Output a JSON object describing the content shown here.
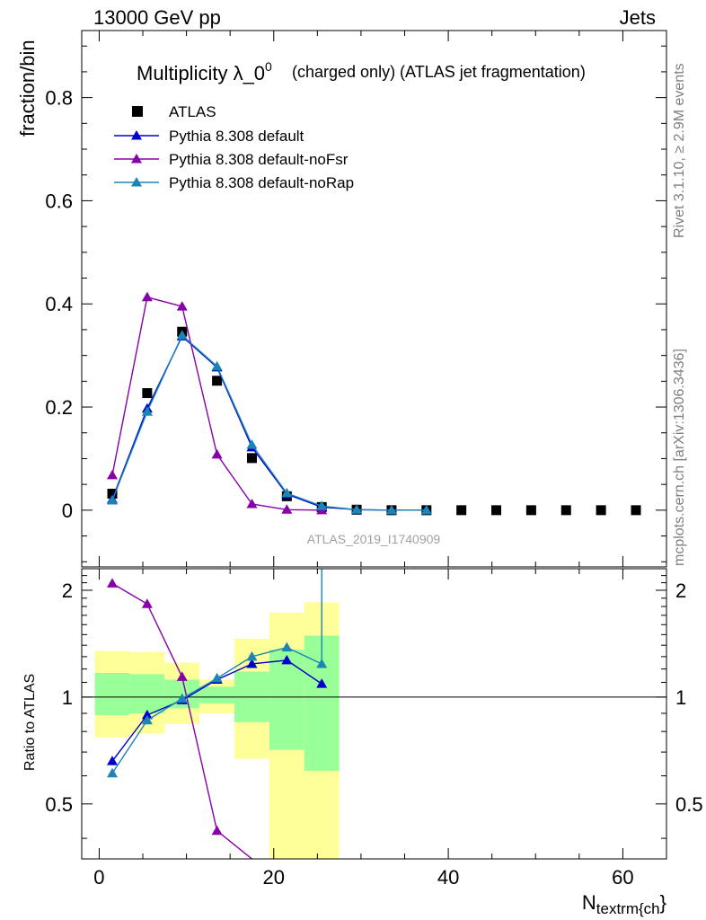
{
  "header": {
    "left": "13000 GeV pp",
    "right": "Jets"
  },
  "side_labels": {
    "rivet": "Rivet 3.1.10, ≥ 2.9M events",
    "mcplots": "mcplots.cern.ch [arXiv:1306.3436]"
  },
  "chart_data": [
    {
      "type": "scatter",
      "title": "Multiplicity λ_0",
      "title_superscript": "0",
      "subtitle": "(charged only) (ATLAS jet fragmentation)",
      "xlabel": "N",
      "xlabel_subscript": "textrm{ch",
      "xlabel_suffix": "}",
      "ylabel": "fraction/bin",
      "watermark": "ATLAS_2019_I1740909",
      "xlim": [
        -2,
        65
      ],
      "ylim": [
        -0.11,
        0.93
      ],
      "x_ticks": [
        0,
        20,
        40,
        60
      ],
      "y_ticks": [
        0,
        0.2,
        0.4,
        0.6,
        0.8
      ],
      "y_tick_labels": [
        "0",
        "0.2",
        "0.4",
        "0.6",
        "0.8"
      ],
      "legend_position": "top-left",
      "series": [
        {
          "name": "ATLAS",
          "marker": "square",
          "color": "#000000",
          "x": [
            1.5,
            5.5,
            9.5,
            13.5,
            17.5,
            21.5,
            25.5,
            29.5,
            33.5,
            37.5,
            41.5,
            45.5,
            49.5,
            53.5,
            57.5,
            61.5
          ],
          "y": [
            0.032,
            0.227,
            0.346,
            0.251,
            0.101,
            0.027,
            0.006,
            0.001,
            0.0,
            0.0,
            0.0,
            0.0,
            0.0,
            0.0,
            0.0,
            0.0
          ]
        },
        {
          "name": "Pythia 8.308 default",
          "marker": "triangle",
          "color": "#0000cc",
          "x": [
            1.5,
            5.5,
            9.5,
            13.5,
            17.5,
            21.5,
            25.5,
            29.5,
            33.5,
            37.5
          ],
          "y": [
            0.021,
            0.197,
            0.337,
            0.277,
            0.122,
            0.031,
            0.006,
            0.001,
            0.0,
            0.0
          ]
        },
        {
          "name": "Pythia 8.308 default-noFsr",
          "marker": "triangle",
          "color": "#8800aa",
          "x": [
            1.5,
            5.5,
            9.5,
            13.5,
            17.5,
            21.5,
            25.5
          ],
          "y": [
            0.068,
            0.413,
            0.395,
            0.108,
            0.012,
            0.001,
            0.0
          ]
        },
        {
          "name": "Pythia 8.308 default-noRap",
          "marker": "triangle",
          "color": "#1b85b8",
          "x": [
            1.5,
            5.5,
            9.5,
            13.5,
            17.5,
            21.5,
            25.5,
            29.5,
            33.5,
            37.5
          ],
          "y": [
            0.019,
            0.191,
            0.339,
            0.279,
            0.127,
            0.033,
            0.008,
            0.001,
            0.0,
            0.0
          ]
        }
      ]
    },
    {
      "type": "line",
      "ylabel": "Ratio to ATLAS",
      "xlim": [
        -2,
        65
      ],
      "ylim": [
        0.35,
        2.3
      ],
      "log_y": true,
      "y_ticks": [
        0.5,
        1,
        2
      ],
      "y_tick_labels": [
        "0.5",
        "1",
        "2"
      ],
      "x_ticks": [
        0,
        20,
        40,
        60
      ],
      "x_tick_labels": [
        "0",
        "20",
        "40",
        "60"
      ],
      "reference_line": 1,
      "uncertainty_bands": [
        {
          "x_low": -0.5,
          "x_high": 3.5,
          "inner": [
            0.89,
            1.17
          ],
          "outer": [
            0.77,
            1.35
          ]
        },
        {
          "x_low": 3.5,
          "x_high": 7.5,
          "inner": [
            0.9,
            1.16
          ],
          "outer": [
            0.79,
            1.34
          ]
        },
        {
          "x_low": 7.5,
          "x_high": 11.5,
          "inner": [
            0.93,
            1.12
          ],
          "outer": [
            0.84,
            1.25
          ]
        },
        {
          "x_low": 11.5,
          "x_high": 15.5,
          "inner": [
            0.96,
            1.07
          ],
          "outer": [
            0.9,
            1.12
          ]
        },
        {
          "x_low": 15.5,
          "x_high": 19.5,
          "inner": [
            0.85,
            1.18
          ],
          "outer": [
            0.67,
            1.46
          ]
        },
        {
          "x_low": 19.5,
          "x_high": 23.5,
          "inner": [
            0.71,
            1.36
          ],
          "outer": [
            0.35,
            1.73
          ]
        },
        {
          "x_low": 23.5,
          "x_high": 27.5,
          "inner": [
            0.62,
            1.49
          ],
          "outer": [
            0.35,
            1.85
          ]
        }
      ],
      "series": [
        {
          "name": "Pythia 8.308 default",
          "color": "#0000cc",
          "x": [
            1.5,
            5.5,
            9.5,
            13.5,
            17.5,
            21.5,
            25.5
          ],
          "y": [
            0.66,
            0.89,
            0.98,
            1.12,
            1.24,
            1.27,
            1.09
          ]
        },
        {
          "name": "Pythia 8.308 default-noFsr",
          "color": "#8800aa",
          "x": [
            1.5,
            5.5,
            9.5,
            13.5,
            17.5
          ],
          "y": [
            2.09,
            1.83,
            1.14,
            0.42,
            0.12
          ]
        },
        {
          "name": "Pythia 8.308 default-noRap",
          "color": "#1b85b8",
          "x": [
            1.5,
            5.5,
            9.5,
            13.5,
            17.5,
            21.5,
            25.5,
            25.5
          ],
          "y": [
            0.61,
            0.86,
            0.99,
            1.13,
            1.3,
            1.38,
            1.24,
            2.5
          ]
        }
      ]
    }
  ]
}
